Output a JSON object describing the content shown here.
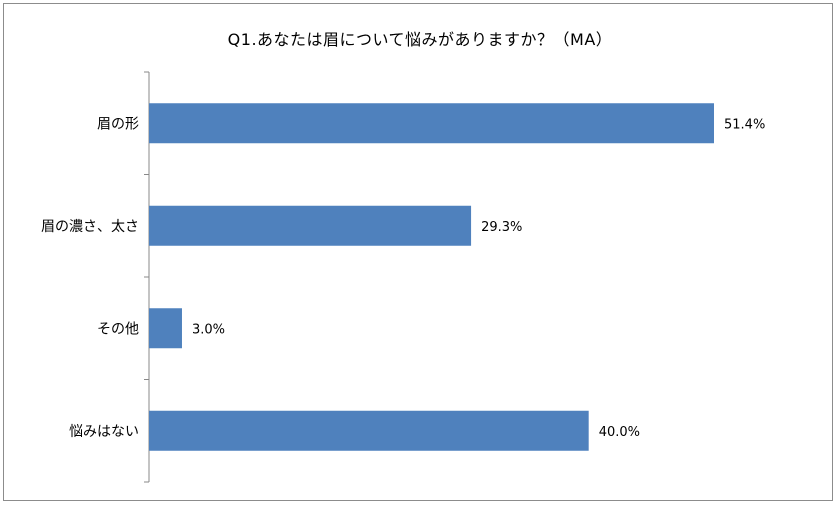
{
  "chart_data": {
    "type": "bar",
    "orientation": "horizontal",
    "title": "Q1.あなたは眉について悩みがありますか？（MA）",
    "categories": [
      "眉の形",
      "眉の濃さ、太さ",
      "その他",
      "悩みはない"
    ],
    "values": [
      51.4,
      29.3,
      3.0,
      40.0
    ],
    "value_labels": [
      "51.4%",
      "29.3%",
      "3.0%",
      "40.0%"
    ],
    "xlim": [
      0,
      60
    ],
    "grid": false,
    "legend": "none",
    "bar_color": "#4f81bd"
  }
}
